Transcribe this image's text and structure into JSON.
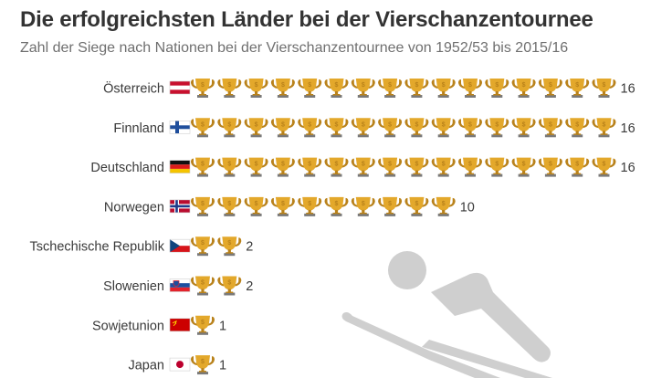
{
  "chart_data": {
    "type": "pictogram-bar",
    "title": "Die erfolgreichsten Länder bei der Vierschanzentournee",
    "subtitle": "Zahl der Siege nach Nationen bei der Vierschanzentournee von 1952/53 bis 2015/16",
    "icon": "trophy-icon",
    "categories": [
      "Österreich",
      "Finnland",
      "Deutschland",
      "Norwegen",
      "Tschechische Republik",
      "Slowenien",
      "Sowjetunion",
      "Japan"
    ],
    "values": [
      16,
      16,
      16,
      10,
      2,
      2,
      1,
      1
    ],
    "flags": [
      "austria-flag",
      "finland-flag",
      "germany-flag",
      "norway-flag",
      "czech-flag",
      "slovenia-flag",
      "soviet-flag",
      "japan-flag"
    ],
    "colors": {
      "trophy": "#e3a82b",
      "trophy_dark": "#b9821b",
      "trophy_base": "#7a7a7a",
      "silhouette": "#cfcfcf"
    }
  }
}
